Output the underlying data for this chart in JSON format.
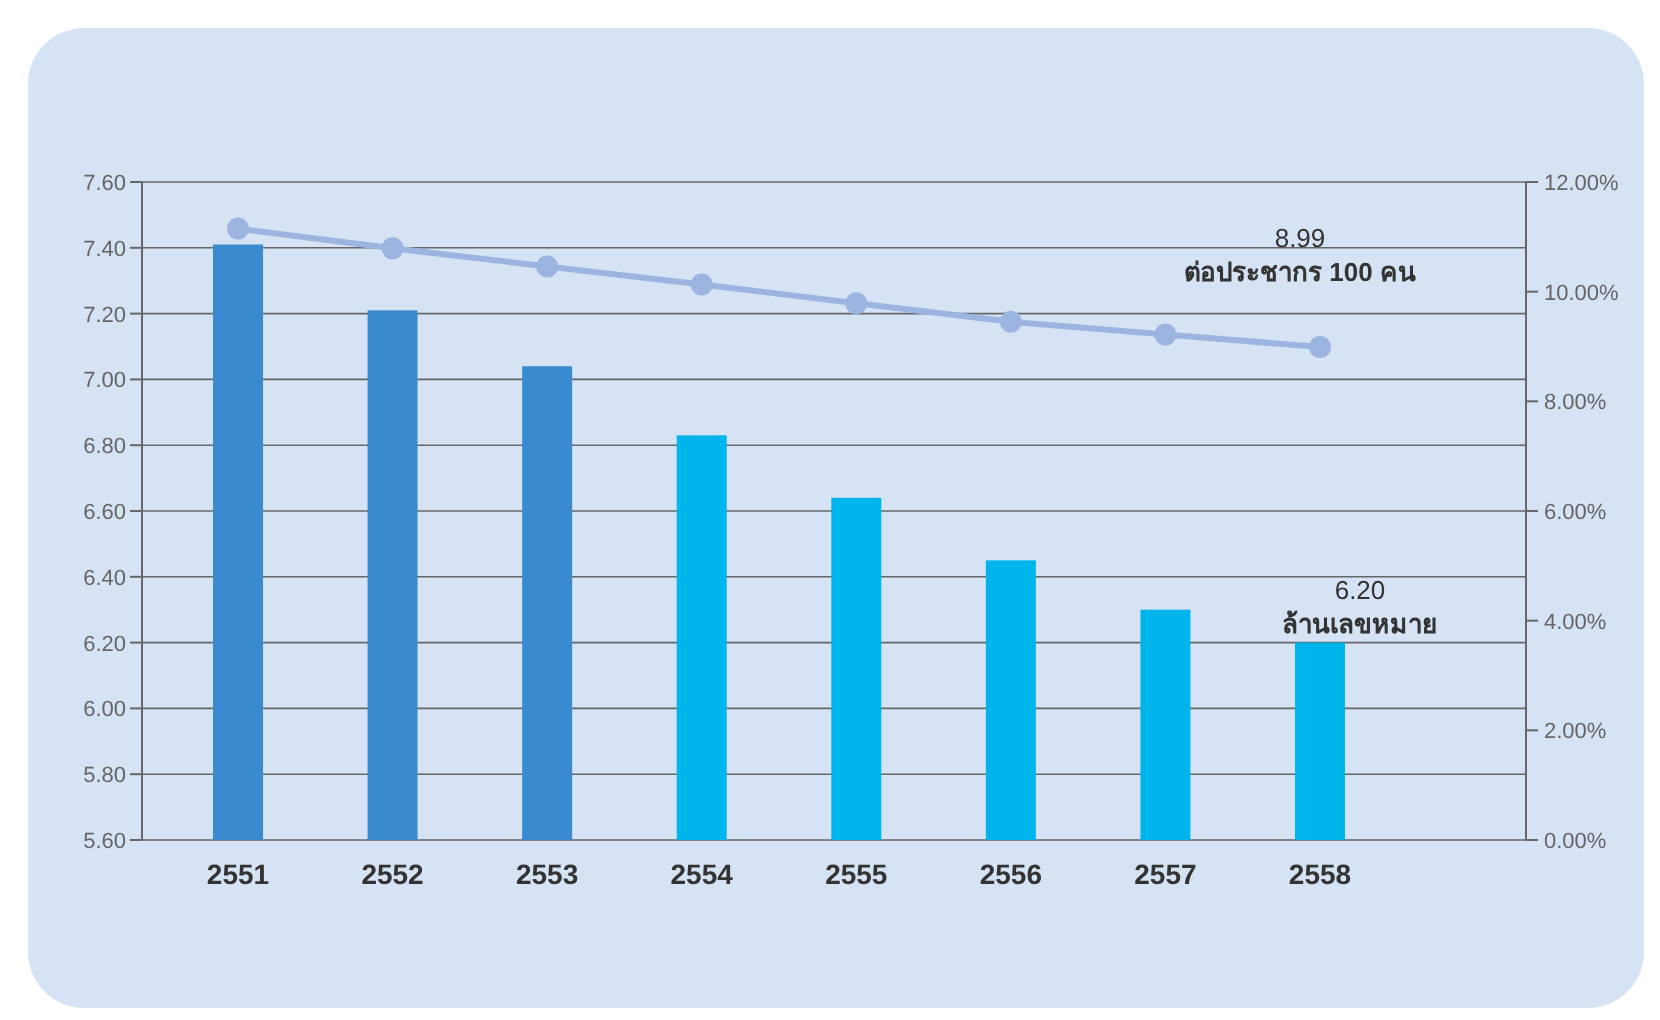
{
  "chart_data": {
    "type": "bar",
    "categories": [
      "2551",
      "2552",
      "2553",
      "2554",
      "2555",
      "2556",
      "2557",
      "2558"
    ],
    "series": [
      {
        "colors": [
          "#3a8ad0",
          "#3a8ad0",
          "#3a8ad0",
          "#00b4ec",
          "#00b4ec",
          "#00b4ec",
          "#00b4ec",
          "#00b4ec"
        ],
        "values": [
          7.41,
          7.21,
          7.04,
          6.83,
          6.64,
          6.45,
          6.3,
          6.2
        ],
        "value_labels": [
          null,
          null,
          null,
          null,
          null,
          null,
          null,
          "6.20"
        ]
      },
      {
        "type": "line",
        "axis": "y2",
        "color": "#9cb5e0",
        "values": [
          11.15,
          10.79,
          10.46,
          10.13,
          9.79,
          9.45,
          9.22,
          8.99
        ],
        "value_labels": [
          null,
          null,
          null,
          null,
          null,
          null,
          null,
          "8.99"
        ]
      }
    ],
    "ylim": [
      5.6,
      7.6
    ],
    "yticks": [
      {
        "value": 5.6,
        "label": "5.60"
      },
      {
        "value": 5.8,
        "label": "5.80"
      },
      {
        "value": 6.0,
        "label": "6.00"
      },
      {
        "value": 6.2,
        "label": "6.20"
      },
      {
        "value": 6.4,
        "label": "6.40"
      },
      {
        "value": 6.6,
        "label": "6.60"
      },
      {
        "value": 6.8,
        "label": "6.80"
      },
      {
        "value": 7.0,
        "label": "7.00"
      },
      {
        "value": 7.2,
        "label": "7.20"
      },
      {
        "value": 7.4,
        "label": "7.40"
      },
      {
        "value": 7.6,
        "label": "7.60"
      }
    ],
    "y2lim": [
      0,
      12
    ],
    "y2ticks": [
      {
        "value": 0,
        "label": "0.00%"
      },
      {
        "value": 2,
        "label": "2.00%"
      },
      {
        "value": 4,
        "label": "4.00%"
      },
      {
        "value": 6,
        "label": "6.00%"
      },
      {
        "value": 8,
        "label": "8.00%"
      },
      {
        "value": 10,
        "label": "10.00%"
      },
      {
        "value": 12,
        "label": "12.00%"
      }
    ],
    "annotations": [
      "ล้านเลขหมาย",
      "ต่อประชากร 100 คน"
    ],
    "grid": "y",
    "marker": "circle",
    "line_style": "solid"
  }
}
